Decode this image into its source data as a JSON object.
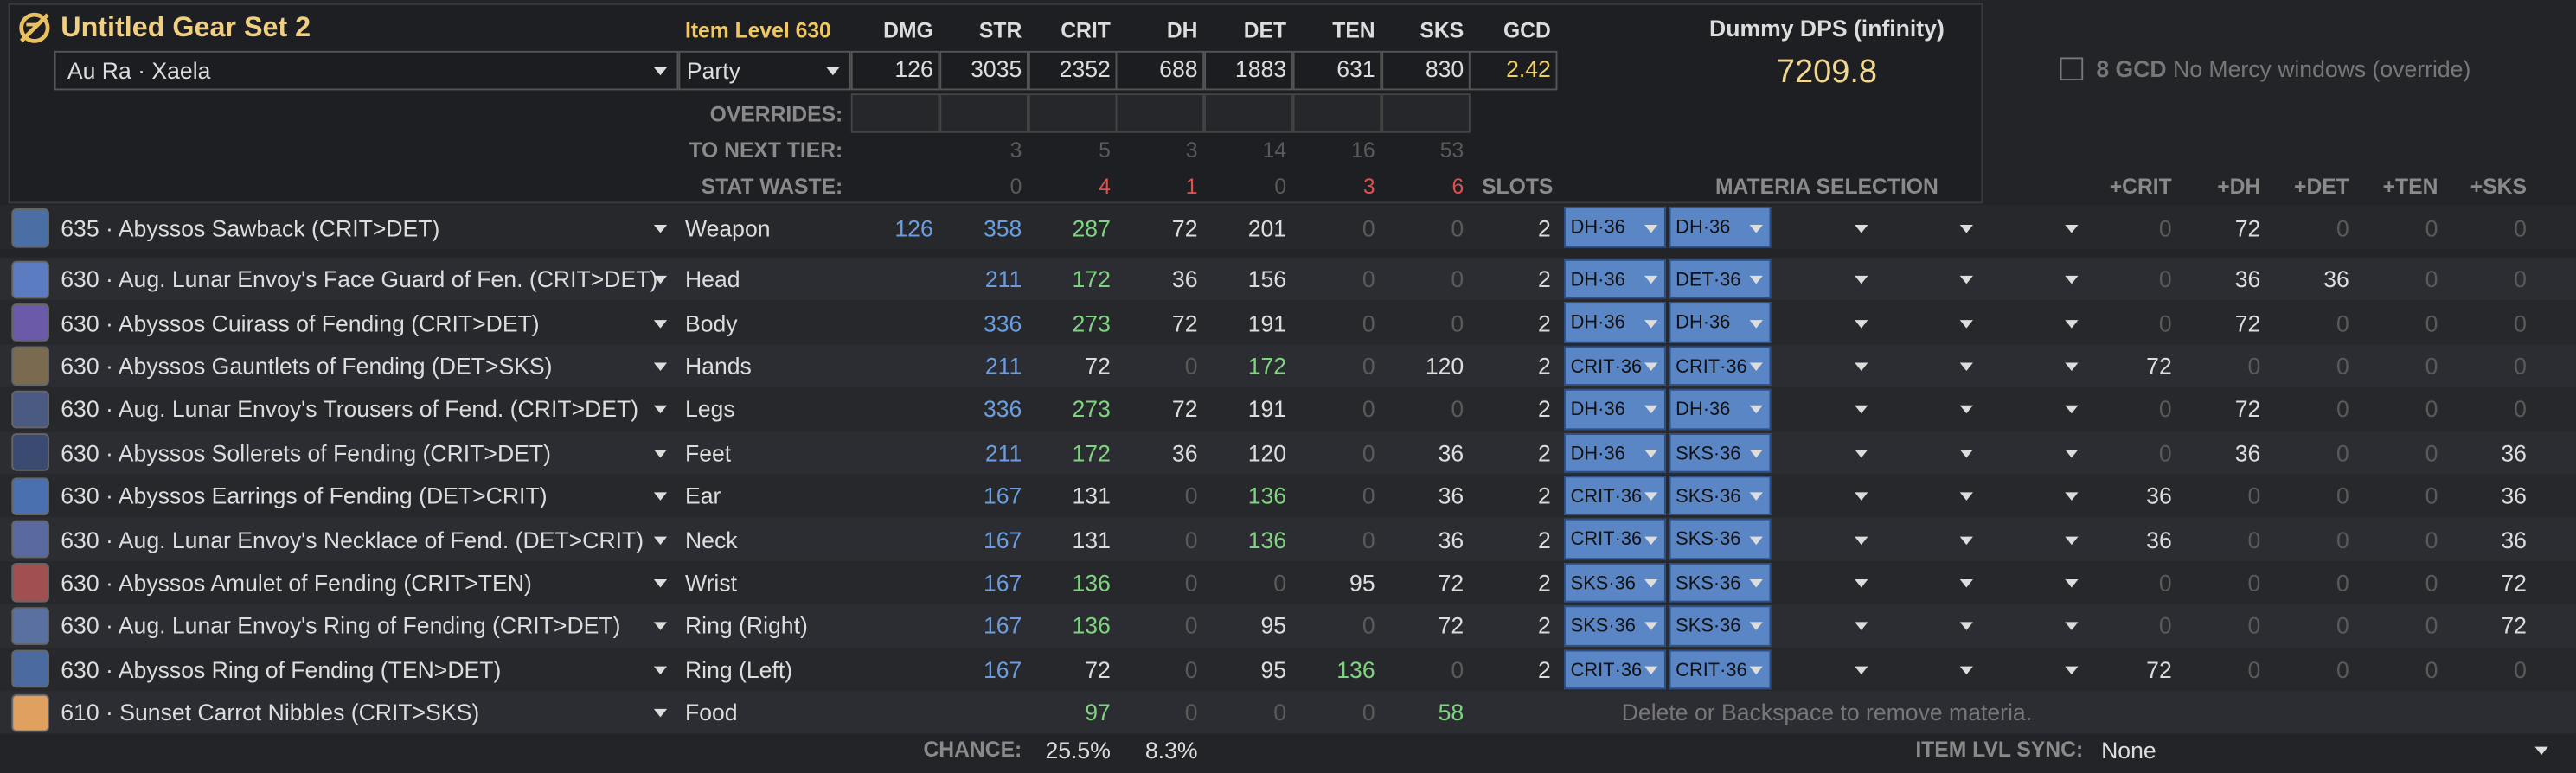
{
  "header": {
    "title": "Untitled Gear Set 2",
    "race": "Au Ra · Xaela",
    "party": "Party",
    "item_level": "Item Level 630",
    "columns": [
      "DMG",
      "STR",
      "CRIT",
      "DH",
      "DET",
      "TEN",
      "SKS",
      "GCD"
    ],
    "totals": [
      126,
      3035,
      2352,
      688,
      1883,
      631,
      830,
      2.42
    ]
  },
  "dps": {
    "label": "Dummy DPS (infinity)",
    "value": 7209.8
  },
  "option": {
    "bold": "8 GCD",
    "text": "No Mercy windows (override)"
  },
  "summary": {
    "overrides_label": "OVERRIDES:",
    "next_tier_label": "TO NEXT TIER:",
    "next_tier": [
      null,
      3,
      5,
      3,
      14,
      16,
      53
    ],
    "waste_label": "STAT WASTE:",
    "waste": [
      null,
      0,
      4,
      1,
      0,
      3,
      6
    ]
  },
  "table": {
    "slots_header": "SLOTS",
    "materia_header": "MATERIA SELECTION",
    "plus_headers": [
      "+CRIT",
      "+DH",
      "+DET",
      "+TEN",
      "+SKS"
    ],
    "note": "Delete or Backspace to remove materia.",
    "rows": [
      {
        "name": "635 · Abyssos Sawback (CRIT>DET)",
        "slot": "Weapon",
        "stats": [
          126,
          358,
          287,
          72,
          201,
          0,
          0
        ],
        "green": [
          "CRIT"
        ],
        "slots": 2,
        "materia": [
          "DH·36",
          "DH·36"
        ],
        "plus": [
          0,
          72,
          0,
          0,
          0
        ]
      },
      {
        "name": "630 · Aug. Lunar Envoy's Face Guard of Fen. (CRIT>DET)",
        "slot": "Head",
        "stats": [
          null,
          211,
          172,
          36,
          156,
          0,
          0
        ],
        "green": [
          "CRIT"
        ],
        "slots": 2,
        "materia": [
          "DH·36",
          "DET·36"
        ],
        "plus": [
          0,
          36,
          36,
          0,
          0
        ]
      },
      {
        "name": "630 · Abyssos Cuirass of Fending (CRIT>DET)",
        "slot": "Body",
        "stats": [
          null,
          336,
          273,
          72,
          191,
          0,
          0
        ],
        "green": [
          "CRIT"
        ],
        "slots": 2,
        "materia": [
          "DH·36",
          "DH·36"
        ],
        "plus": [
          0,
          72,
          0,
          0,
          0
        ]
      },
      {
        "name": "630 · Abyssos Gauntlets of Fending (DET>SKS)",
        "slot": "Hands",
        "stats": [
          null,
          211,
          72,
          0,
          172,
          0,
          120
        ],
        "green": [
          "DET"
        ],
        "slots": 2,
        "materia": [
          "CRIT·36",
          "CRIT·36"
        ],
        "plus": [
          72,
          0,
          0,
          0,
          0
        ]
      },
      {
        "name": "630 · Aug. Lunar Envoy's Trousers of Fend. (CRIT>DET)",
        "slot": "Legs",
        "stats": [
          null,
          336,
          273,
          72,
          191,
          0,
          0
        ],
        "green": [
          "CRIT"
        ],
        "slots": 2,
        "materia": [
          "DH·36",
          "DH·36"
        ],
        "plus": [
          0,
          72,
          0,
          0,
          0
        ]
      },
      {
        "name": "630 · Abyssos Sollerets of Fending (CRIT>DET)",
        "slot": "Feet",
        "stats": [
          null,
          211,
          172,
          36,
          120,
          0,
          36
        ],
        "green": [
          "CRIT"
        ],
        "slots": 2,
        "materia": [
          "DH·36",
          "SKS·36"
        ],
        "plus": [
          0,
          36,
          0,
          0,
          36
        ]
      },
      {
        "name": "630 · Abyssos Earrings of Fending (DET>CRIT)",
        "slot": "Ear",
        "stats": [
          null,
          167,
          131,
          0,
          136,
          0,
          36
        ],
        "green": [
          "DET"
        ],
        "slots": 2,
        "materia": [
          "CRIT·36",
          "SKS·36"
        ],
        "plus": [
          36,
          0,
          0,
          0,
          36
        ]
      },
      {
        "name": "630 · Aug. Lunar Envoy's Necklace of Fend. (DET>CRIT)",
        "slot": "Neck",
        "stats": [
          null,
          167,
          131,
          0,
          136,
          0,
          36
        ],
        "green": [
          "DET"
        ],
        "slots": 2,
        "materia": [
          "CRIT·36",
          "SKS·36"
        ],
        "plus": [
          36,
          0,
          0,
          0,
          36
        ]
      },
      {
        "name": "630 · Abyssos Amulet of Fending (CRIT>TEN)",
        "slot": "Wrist",
        "stats": [
          null,
          167,
          136,
          0,
          0,
          95,
          72
        ],
        "green": [
          "CRIT"
        ],
        "slots": 2,
        "materia": [
          "SKS·36",
          "SKS·36"
        ],
        "plus": [
          0,
          0,
          0,
          0,
          72
        ]
      },
      {
        "name": "630 · Aug. Lunar Envoy's Ring of Fending (CRIT>DET)",
        "slot": "Ring (Right)",
        "stats": [
          null,
          167,
          136,
          0,
          95,
          0,
          72
        ],
        "green": [
          "CRIT"
        ],
        "slots": 2,
        "materia": [
          "SKS·36",
          "SKS·36"
        ],
        "plus": [
          0,
          0,
          0,
          0,
          72
        ]
      },
      {
        "name": "630 · Abyssos Ring of Fending (TEN>DET)",
        "slot": "Ring (Left)",
        "stats": [
          null,
          167,
          72,
          0,
          95,
          136,
          0
        ],
        "green": [
          "TEN"
        ],
        "slots": 2,
        "materia": [
          "CRIT·36",
          "CRIT·36"
        ],
        "plus": [
          72,
          0,
          0,
          0,
          0
        ]
      },
      {
        "name": "610 · Sunset Carrot Nibbles (CRIT>SKS)",
        "slot": "Food",
        "stats": [
          null,
          null,
          97,
          0,
          0,
          0,
          58
        ],
        "green": [
          "CRIT",
          "SKS"
        ],
        "slots": null,
        "materia": [],
        "plus": null
      }
    ]
  },
  "footer": {
    "chance_label": "CHANCE:",
    "crit_chance": "25.5%",
    "dh_chance": "8.3%",
    "sync_label": "ITEM LVL SYNC:",
    "sync": "None"
  }
}
